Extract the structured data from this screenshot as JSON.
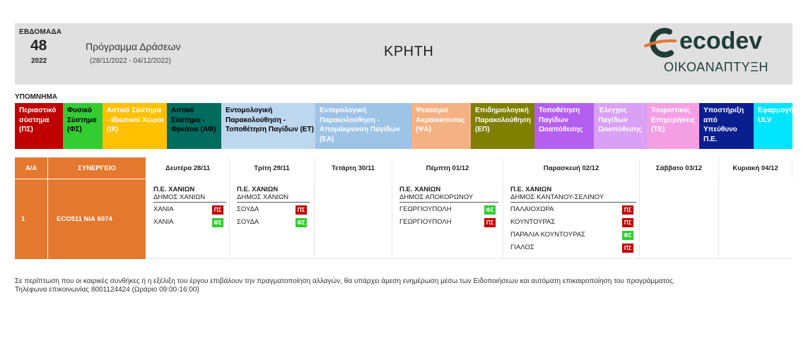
{
  "header": {
    "week_label": "ΕΒΔΟΜΑΔΑ",
    "week_number": "48",
    "year": "2022",
    "program_title": "Πρόγραμμα Δράσεων",
    "date_range": "(28/11/2022 - 04/12/2022)",
    "region": "ΚΡΗΤΗ",
    "logo_text": "ecodev",
    "logo_subtitle": "ΟΙΚΟΑΝΑΠΤΥΞΗ"
  },
  "legend": {
    "title": "ΥΠΟΜΝΗΜΑ",
    "items": [
      {
        "label": "Περιαστικό σύστημα (ΠΣ)",
        "bg": "#c00000",
        "fg": "#ffffff"
      },
      {
        "label": "Φυσικό Σύστημα (ΦΣ)",
        "bg": "#33cc33",
        "fg": "#000000"
      },
      {
        "label": "Αστικό Σύστημα - Ιδιωτικοί Χώροι (ΙΧ)",
        "bg": "#ffc000",
        "fg": "#ffffff"
      },
      {
        "label": "Αστικό Σύστημα - Φρεάτια (ΑΦ)",
        "bg": "#006b5f",
        "fg": "#000000"
      },
      {
        "label": "Εντομολογική Παρακολούθηση - Τοποθέτηση Παγίδων (ΕΤ)",
        "bg": "#bdd7ee",
        "fg": "#000000"
      },
      {
        "label": "Εντομολογική Παρακολούθηση - Απομάκρυνση Παγίδων (ΕΑ)",
        "bg": "#9dc3e6",
        "fg": "#ffffff"
      },
      {
        "label": "Ψεκασμοί Ακμαιοκτονίας (ΨΑ)",
        "bg": "#f4b183",
        "fg": "#ffffff"
      },
      {
        "label": "Επιδημιολογική Παρακολούθηση (ΕΠ)",
        "bg": "#7f7f00",
        "fg": "#ffffff"
      },
      {
        "label": "Τοποθέτηση Παγίδων Ωοαπόθεσης",
        "bg": "#b45ff0",
        "fg": "#ffffff"
      },
      {
        "label": "Έλεγχος Παγίδων Ωοαπόθεσης",
        "bg": "#d9a0f5",
        "fg": "#ffffff"
      },
      {
        "label": "Τουριστικές Επιχειρήσεις (ΤΕ)",
        "bg": "#f49fe3",
        "fg": "#ffffff"
      },
      {
        "label": "Υποστήριξη από Υπεύθυνο Π.Ε.",
        "bg": "#0a1f8f",
        "fg": "#ffffff"
      },
      {
        "label": "Εφαρμογή ULV",
        "bg": "#00e5ff",
        "fg": "#ffffff"
      }
    ]
  },
  "table": {
    "headers": {
      "index": "Α/Α",
      "crew": "ΣΥΝΕΡΓΕΙΟ",
      "days": [
        "Δευτέρα 28/11",
        "Τρίτη 29/11",
        "Τετάρτη 30/11",
        "Πέμπτη 01/12",
        "Παρασκευή 02/12",
        "Σάββατο 03/12",
        "Κυριακή 04/12"
      ]
    },
    "rows": [
      {
        "index": "1",
        "crew": "ECO511  ΝΙΑ 6074",
        "days": [
          {
            "pe": "Π.Ε. ΧΑΝΙΩΝ",
            "dimos": "ΔΗΜΟΣ ΧΑΝΙΩΝ",
            "entries": [
              {
                "place": "ΧΑΝΙΑ",
                "code": "ΠΣ"
              },
              {
                "place": "ΧΑΝΙΑ",
                "code": "ΦΣ"
              }
            ]
          },
          {
            "pe": "Π.Ε. ΧΑΝΙΩΝ",
            "dimos": "ΔΗΜΟΣ ΧΑΝΙΩΝ",
            "entries": [
              {
                "place": "ΣΟΥΔΑ",
                "code": "ΠΣ"
              },
              {
                "place": "ΣΟΥΔΑ",
                "code": "ΦΣ"
              }
            ]
          },
          null,
          {
            "pe": "Π.Ε. ΧΑΝΙΩΝ",
            "dimos": "ΔΗΜΟΣ ΑΠΟΚΟΡΩΝΟΥ",
            "entries": [
              {
                "place": "ΓΕΩΡΓΙΟΥΠΟΛΗ",
                "code": "ΦΣ"
              },
              {
                "place": "ΓΕΩΡΓΙΟΥΠΟΛΗ",
                "code": "ΠΣ"
              }
            ]
          },
          {
            "pe": "Π.Ε. ΧΑΝΙΩΝ",
            "dimos": "ΔΗΜΟΣ ΚΑΝΤΑΝΟΥ-ΣΕΛΙΝΟΥ",
            "entries": [
              {
                "place": "ΠΑΛΑΙΟΧΩΡΑ",
                "code": "ΠΣ"
              },
              {
                "place": "ΚΟΥΝΤΟΥΡΑΣ",
                "code": "ΠΣ"
              },
              {
                "place": "ΠΑΡΑΛΙΑ ΚΟΥΝΤΟΥΡΑΣ",
                "code": "ΦΣ"
              },
              {
                "place": "ΓΙΑΛΟΣ",
                "code": "ΠΣ"
              }
            ]
          },
          null,
          null
        ]
      }
    ]
  },
  "footer": {
    "line1": "Σε περίπτωση που οι καιρικές συνθήκες ή η εξέλιξη του έργου επιβάλουν την πραγματοποίηση αλλαγών, θα υπάρχει άμεση ενημέρωση μέσω των Ειδοποιήσεων και αυτόματη επικαιροποίηση του προγράμματος.",
    "line2": "Τηλέφωνα επικοινωνίας 8001124424 (Ωράριο 09:00-16:00)"
  }
}
